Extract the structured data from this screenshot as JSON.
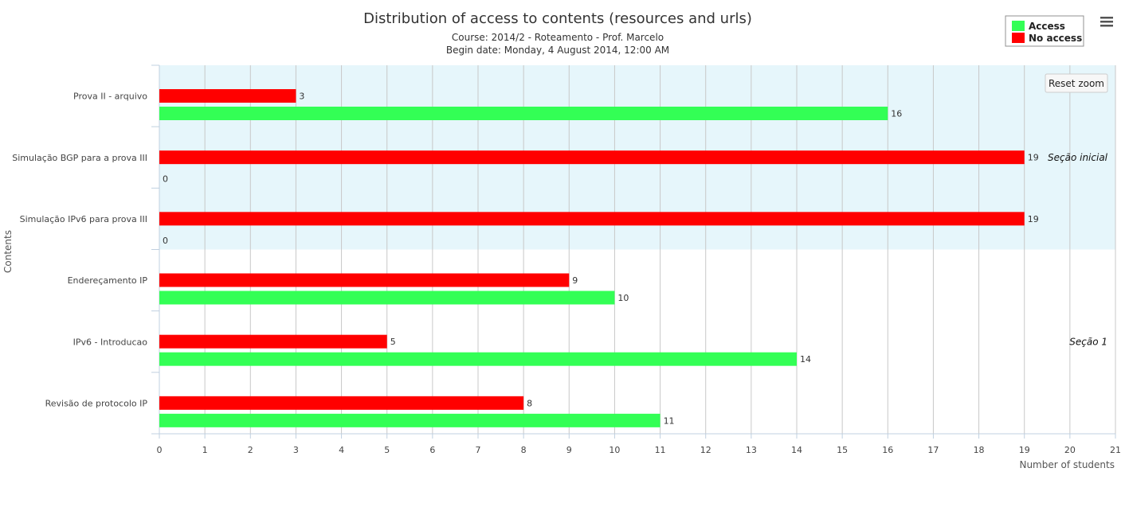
{
  "chart_data": {
    "type": "bar",
    "orientation": "horizontal",
    "title": "Distribution of access to contents (resources and urls)",
    "subtitle": [
      "Course: 2014/2 - Roteamento - Prof. Marcelo",
      "Begin date: Monday, 4 August 2014, 12:00 AM"
    ],
    "xlabel": "Number of students",
    "ylabel": "Contents",
    "xlim": [
      0,
      21
    ],
    "ticks": [
      "0",
      "1",
      "2",
      "3",
      "4",
      "5",
      "6",
      "7",
      "8",
      "9",
      "10",
      "11",
      "12",
      "13",
      "14",
      "15",
      "16",
      "17",
      "18",
      "19",
      "20",
      "21"
    ],
    "grid": true,
    "legend": "top-right",
    "categories": [
      "Prova II - arquivo",
      "Simulação BGP para a prova III",
      "Simulação IPv6 para prova III",
      "Endereçamento IP",
      "IPv6 - Introducao",
      "Revisão de protocolo IP"
    ],
    "series": [
      {
        "name": "No access",
        "color": "#ff0000",
        "values": [
          3,
          19,
          19,
          9,
          5,
          8
        ]
      },
      {
        "name": "Access",
        "color": "#33ff55",
        "values": [
          16,
          0,
          0,
          10,
          14,
          11
        ]
      }
    ],
    "bands": [
      {
        "label": "Seção inicial",
        "from_category": 0,
        "to_category": 2,
        "color": "#e6f6fb"
      },
      {
        "label": "Seção 1",
        "from_category": 3,
        "to_category": 5,
        "color": "#ffffff"
      }
    ]
  },
  "controls": {
    "reset_zoom": "Reset zoom",
    "menu_icon": "hamburger-menu-icon"
  }
}
